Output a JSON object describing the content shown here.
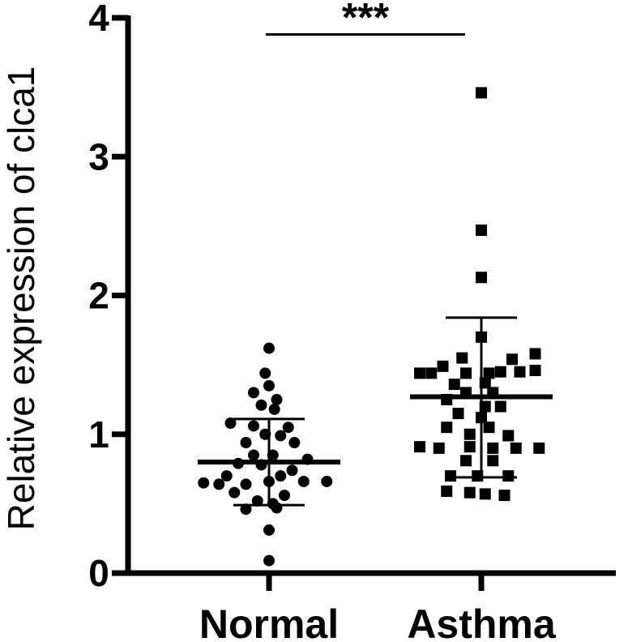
{
  "chart_data": {
    "type": "scatter",
    "ylabel": "Relative expression of clca1",
    "ylim": [
      0,
      4
    ],
    "yticks": [
      0,
      1,
      2,
      3,
      4
    ],
    "categories": [
      "Normal",
      "Asthma"
    ],
    "grid": false,
    "legend": "none",
    "significance": {
      "label": "***",
      "between": [
        "Normal",
        "Asthma"
      ],
      "y": 3.88
    },
    "series": [
      {
        "marker": "circle",
        "color": "#000000",
        "mean": 0.8,
        "sd_low": 0.49,
        "sd_high": 1.11,
        "points": [
          {
            "dx": 0,
            "y": 1.62
          },
          {
            "dx": -0.05,
            "y": 1.44
          },
          {
            "dx": 0,
            "y": 1.35
          },
          {
            "dx": -0.2,
            "y": 1.3
          },
          {
            "dx": 0.1,
            "y": 1.25
          },
          {
            "dx": -0.1,
            "y": 1.21
          },
          {
            "dx": 0.07,
            "y": 1.18
          },
          {
            "dx": -0.5,
            "y": 1.08
          },
          {
            "dx": -0.2,
            "y": 1.06
          },
          {
            "dx": 0.25,
            "y": 1.05
          },
          {
            "dx": -0.05,
            "y": 1.0
          },
          {
            "dx": 0.15,
            "y": 0.99
          },
          {
            "dx": -0.3,
            "y": 0.94
          },
          {
            "dx": 0.33,
            "y": 0.94
          },
          {
            "dx": -0.2,
            "y": 0.85
          },
          {
            "dx": 0.05,
            "y": 0.85
          },
          {
            "dx": 0.5,
            "y": 0.82
          },
          {
            "dx": -0.4,
            "y": 0.79
          },
          {
            "dx": -0.1,
            "y": 0.78
          },
          {
            "dx": 0.3,
            "y": 0.74
          },
          {
            "dx": -0.55,
            "y": 0.7
          },
          {
            "dx": 0.15,
            "y": 0.7
          },
          {
            "dx": -0.85,
            "y": 0.65
          },
          {
            "dx": -0.65,
            "y": 0.64
          },
          {
            "dx": -0.3,
            "y": 0.64
          },
          {
            "dx": 0.0,
            "y": 0.66
          },
          {
            "dx": 0.45,
            "y": 0.66
          },
          {
            "dx": 0.75,
            "y": 0.66
          },
          {
            "dx": -0.45,
            "y": 0.58
          },
          {
            "dx": 0.2,
            "y": 0.56
          },
          {
            "dx": -0.15,
            "y": 0.52
          },
          {
            "dx": 0.05,
            "y": 0.5
          },
          {
            "dx": -0.3,
            "y": 0.46
          },
          {
            "dx": 0.1,
            "y": 0.47
          },
          {
            "dx": 0,
            "y": 0.31
          },
          {
            "dx": 0,
            "y": 0.09
          }
        ]
      },
      {
        "marker": "square",
        "color": "#000000",
        "mean": 1.27,
        "sd_low": 0.69,
        "sd_high": 1.84,
        "points": [
          {
            "dx": 0,
            "y": 3.46
          },
          {
            "dx": 0,
            "y": 2.47
          },
          {
            "dx": 0,
            "y": 2.13
          },
          {
            "dx": 0,
            "y": 1.7
          },
          {
            "dx": 0.7,
            "y": 1.58
          },
          {
            "dx": -0.25,
            "y": 1.55
          },
          {
            "dx": 0.4,
            "y": 1.54
          },
          {
            "dx": -0.5,
            "y": 1.49
          },
          {
            "dx": -0.8,
            "y": 1.44
          },
          {
            "dx": -0.65,
            "y": 1.44
          },
          {
            "dx": -0.2,
            "y": 1.44
          },
          {
            "dx": 0.1,
            "y": 1.44
          },
          {
            "dx": 0.25,
            "y": 1.45
          },
          {
            "dx": 0.5,
            "y": 1.45
          },
          {
            "dx": 0.7,
            "y": 1.46
          },
          {
            "dx": -0.35,
            "y": 1.36
          },
          {
            "dx": 0.05,
            "y": 1.37
          },
          {
            "dx": -0.2,
            "y": 1.3
          },
          {
            "dx": 0.15,
            "y": 1.3
          },
          {
            "dx": -0.45,
            "y": 1.25
          },
          {
            "dx": 0.05,
            "y": 1.2
          },
          {
            "dx": 0.25,
            "y": 1.2
          },
          {
            "dx": -0.3,
            "y": 1.15
          },
          {
            "dx": 0.0,
            "y": 1.12
          },
          {
            "dx": -0.45,
            "y": 1.05
          },
          {
            "dx": 0.1,
            "y": 1.05
          },
          {
            "dx": -0.15,
            "y": 1.0
          },
          {
            "dx": 0.35,
            "y": 0.99
          },
          {
            "dx": -0.8,
            "y": 0.91
          },
          {
            "dx": -0.55,
            "y": 0.9
          },
          {
            "dx": -0.15,
            "y": 0.91
          },
          {
            "dx": 0.15,
            "y": 0.9
          },
          {
            "dx": 0.45,
            "y": 0.9
          },
          {
            "dx": 0.75,
            "y": 0.9
          },
          {
            "dx": -0.2,
            "y": 0.81
          },
          {
            "dx": 0.15,
            "y": 0.81
          },
          {
            "dx": -0.4,
            "y": 0.7
          },
          {
            "dx": -0.05,
            "y": 0.7
          },
          {
            "dx": 0.35,
            "y": 0.7
          },
          {
            "dx": -0.45,
            "y": 0.59
          },
          {
            "dx": -0.15,
            "y": 0.58
          },
          {
            "dx": 0.05,
            "y": 0.57
          },
          {
            "dx": 0.3,
            "y": 0.56
          }
        ]
      }
    ]
  }
}
